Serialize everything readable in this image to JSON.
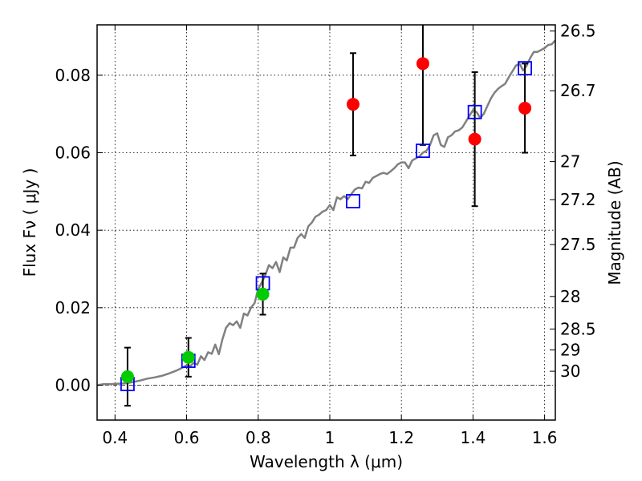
{
  "chart_data": {
    "type": "scatter",
    "xlabel": "Wavelength  λ (μm)",
    "ylabel": "Flux  Fν  ( μJy )",
    "ylabel_right": "Magnitude (AB)",
    "xlim": [
      0.35,
      1.63
    ],
    "ylim": [
      -0.009,
      0.093
    ],
    "xticks": [
      {
        "value": 0.4,
        "label": "0.4"
      },
      {
        "value": 0.6,
        "label": "0.6"
      },
      {
        "value": 0.8,
        "label": "0.8"
      },
      {
        "value": 1.0,
        "label": "1"
      },
      {
        "value": 1.2,
        "label": "1.2"
      },
      {
        "value": 1.4,
        "label": "1.4"
      },
      {
        "value": 1.6,
        "label": "1.6"
      }
    ],
    "yticks": [
      {
        "value": 0.0,
        "label": "0.00"
      },
      {
        "value": 0.02,
        "label": "0.02"
      },
      {
        "value": 0.04,
        "label": "0.04"
      },
      {
        "value": 0.06,
        "label": "0.06"
      },
      {
        "value": 0.08,
        "label": "0.08"
      }
    ],
    "right_ticks": [
      {
        "mag": "26.5",
        "flux": 0.0914
      },
      {
        "mag": "26.7",
        "flux": 0.076
      },
      {
        "mag": "27",
        "flux": 0.0577
      },
      {
        "mag": "27.2",
        "flux": 0.0479
      },
      {
        "mag": "27.5",
        "flux": 0.0363
      },
      {
        "mag": "28",
        "flux": 0.0229
      },
      {
        "mag": "28.5",
        "flux": 0.0145
      },
      {
        "mag": "29",
        "flux": 0.0091
      },
      {
        "mag": "30",
        "flux": 0.0036
      }
    ],
    "grid": true,
    "zero_line": 0.0,
    "model_color": "#808080",
    "model_x": [
      0.35,
      0.37,
      0.39,
      0.41,
      0.43,
      0.45,
      0.47,
      0.49,
      0.51,
      0.53,
      0.55,
      0.57,
      0.59,
      0.6,
      0.61,
      0.62,
      0.63,
      0.64,
      0.65,
      0.66,
      0.67,
      0.68,
      0.69,
      0.7,
      0.71,
      0.72,
      0.73,
      0.74,
      0.75,
      0.76,
      0.77,
      0.78,
      0.79,
      0.8,
      0.81,
      0.82,
      0.83,
      0.84,
      0.85,
      0.86,
      0.87,
      0.88,
      0.89,
      0.9,
      0.91,
      0.92,
      0.93,
      0.94,
      0.95,
      0.96,
      0.97,
      0.98,
      0.99,
      1.0,
      1.01,
      1.02,
      1.03,
      1.04,
      1.05,
      1.06,
      1.07,
      1.08,
      1.09,
      1.1,
      1.11,
      1.12,
      1.13,
      1.14,
      1.15,
      1.16,
      1.17,
      1.18,
      1.19,
      1.2,
      1.21,
      1.22,
      1.23,
      1.24,
      1.25,
      1.26,
      1.27,
      1.28,
      1.29,
      1.3,
      1.31,
      1.32,
      1.33,
      1.34,
      1.35,
      1.36,
      1.37,
      1.38,
      1.39,
      1.4,
      1.41,
      1.42,
      1.43,
      1.44,
      1.45,
      1.46,
      1.47,
      1.48,
      1.49,
      1.5,
      1.51,
      1.52,
      1.53,
      1.54,
      1.55,
      1.56,
      1.57,
      1.58,
      1.59,
      1.6,
      1.61,
      1.62,
      1.63
    ],
    "model_y": [
      0.0,
      0.0003,
      0.0003,
      0.0004,
      0.0005,
      0.0008,
      0.0012,
      0.0017,
      0.002,
      0.0024,
      0.003,
      0.0037,
      0.0046,
      0.0052,
      0.0049,
      0.0058,
      0.0053,
      0.0075,
      0.0065,
      0.0085,
      0.0081,
      0.0105,
      0.008,
      0.0118,
      0.0148,
      0.016,
      0.0155,
      0.0165,
      0.0148,
      0.0185,
      0.018,
      0.02,
      0.0212,
      0.0248,
      0.0265,
      0.0285,
      0.031,
      0.0302,
      0.0318,
      0.0292,
      0.033,
      0.0322,
      0.0355,
      0.0355,
      0.038,
      0.039,
      0.038,
      0.041,
      0.042,
      0.0435,
      0.044,
      0.0448,
      0.0452,
      0.0465,
      0.0452,
      0.0485,
      0.048,
      0.0488,
      0.048,
      0.0493,
      0.0505,
      0.051,
      0.0508,
      0.0525,
      0.0522,
      0.0535,
      0.054,
      0.0545,
      0.0548,
      0.0545,
      0.0552,
      0.056,
      0.057,
      0.0575,
      0.0575,
      0.056,
      0.058,
      0.0585,
      0.059,
      0.06,
      0.0605,
      0.062,
      0.0645,
      0.065,
      0.062,
      0.0615,
      0.064,
      0.0645,
      0.0655,
      0.0658,
      0.0665,
      0.068,
      0.0695,
      0.071,
      0.0705,
      0.069,
      0.07,
      0.072,
      0.074,
      0.0755,
      0.0765,
      0.0772,
      0.0778,
      0.0795,
      0.081,
      0.0825,
      0.083,
      0.0812,
      0.0825,
      0.0845,
      0.086,
      0.086,
      0.0865,
      0.087,
      0.0878,
      0.088,
      0.089
    ],
    "synthetic_color": "#0000ff",
    "synthetic_points": [
      {
        "x": 0.435,
        "y": 0.0003
      },
      {
        "x": 0.605,
        "y": 0.0063
      },
      {
        "x": 0.813,
        "y": 0.0263
      },
      {
        "x": 1.065,
        "y": 0.0475
      },
      {
        "x": 1.26,
        "y": 0.0605
      },
      {
        "x": 1.405,
        "y": 0.0705
      },
      {
        "x": 1.545,
        "y": 0.0818
      }
    ],
    "detected_color": "#00cc00",
    "detected_points": [
      {
        "x": 0.435,
        "y": 0.0022,
        "err": 0.0075
      },
      {
        "x": 0.605,
        "y": 0.0072,
        "err": 0.005
      },
      {
        "x": 0.813,
        "y": 0.0235,
        "err": 0.0053
      }
    ],
    "nir_color": "#ff0000",
    "nir_points": [
      {
        "x": 1.065,
        "y": 0.0725,
        "err": 0.0132
      },
      {
        "x": 1.26,
        "y": 0.083,
        "err": 0.021
      },
      {
        "x": 1.405,
        "y": 0.0635,
        "err": 0.0173
      },
      {
        "x": 1.545,
        "y": 0.0715,
        "err": 0.0115
      }
    ]
  }
}
